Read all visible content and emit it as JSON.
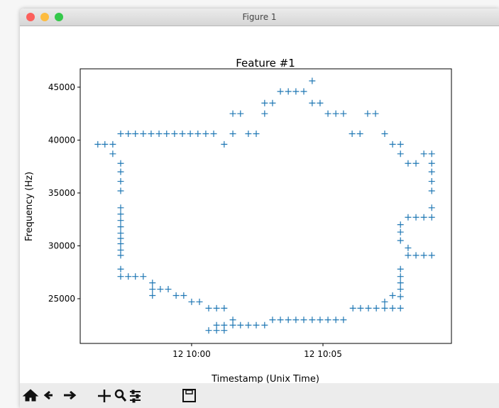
{
  "window": {
    "title": "Figure 1"
  },
  "chart_data": {
    "type": "scatter",
    "title": "Feature #1",
    "xlabel": "Timestamp (Unix Time)",
    "ylabel": "Frequency (Hz)",
    "marker": "+",
    "color": "#1f77b4",
    "xlim": [
      595.76,
      609.89
    ],
    "ylim": [
      20770,
      46740
    ],
    "xticks": [
      {
        "value": 600,
        "label": "12 10:00"
      },
      {
        "value": 605,
        "label": "12 10:05"
      }
    ],
    "yticks": [
      25000,
      30000,
      35000,
      40000,
      45000
    ],
    "x": [
      596.43,
      596.7,
      597.0,
      597.0,
      597.3,
      597.59,
      597.86,
      598.16,
      598.46,
      598.76,
      599.05,
      599.35,
      599.65,
      599.95,
      600.24,
      600.54,
      600.84,
      601.24,
      601.57,
      601.57,
      601.86,
      602.16,
      602.46,
      602.78,
      602.78,
      603.08,
      603.38,
      603.68,
      603.97,
      604.27,
      604.59,
      604.59,
      604.89,
      605.19,
      605.49,
      605.78,
      606.11,
      606.41,
      606.7,
      607.0,
      607.35,
      607.65,
      607.95,
      607.95,
      608.24,
      608.54,
      608.84,
      609.14,
      609.14,
      609.14,
      609.14,
      609.14,
      609.14,
      609.14,
      608.24,
      608.54,
      608.84,
      607.95,
      607.95,
      607.95,
      608.24,
      608.24,
      608.54,
      608.84,
      609.14,
      607.95,
      607.95,
      607.95,
      607.95,
      607.95,
      607.65,
      607.35,
      606.14,
      606.43,
      606.73,
      607.03,
      607.35,
      607.65,
      607.95,
      603.08,
      603.38,
      603.68,
      603.97,
      604.27,
      604.59,
      604.89,
      605.19,
      605.49,
      605.78,
      601.57,
      601.57,
      601.86,
      602.16,
      602.46,
      602.78,
      600.95,
      601.24,
      600.65,
      600.95,
      601.24,
      600.65,
      600.95,
      601.24,
      600.0,
      600.3,
      599.41,
      599.7,
      598.81,
      599.11,
      598.51,
      598.51,
      598.51,
      597.3,
      597.59,
      597.86,
      598.16,
      597.3,
      597.3,
      597.3,
      597.3,
      597.3,
      597.3,
      597.3,
      597.3,
      597.3,
      597.3,
      597.3,
      597.3,
      597.3,
      597.3
    ],
    "values": [
      39600,
      39600,
      39600,
      38700,
      40600,
      40600,
      40600,
      40600,
      40600,
      40600,
      40600,
      40600,
      40600,
      40600,
      40600,
      40600,
      40600,
      39600,
      40600,
      42500,
      42500,
      40600,
      40600,
      42500,
      43500,
      43500,
      44600,
      44600,
      44600,
      44600,
      45600,
      43500,
      43500,
      42500,
      42500,
      42500,
      40600,
      40600,
      42500,
      42500,
      40600,
      39600,
      39600,
      38700,
      37800,
      37800,
      38700,
      38700,
      37800,
      37000,
      36100,
      35200,
      33600,
      32700,
      32700,
      32700,
      32700,
      32000,
      31300,
      30500,
      29800,
      29100,
      29100,
      29100,
      29100,
      27800,
      27100,
      26500,
      25900,
      25200,
      25300,
      24700,
      24100,
      24100,
      24100,
      24100,
      24100,
      24100,
      24100,
      23000,
      23000,
      23000,
      23000,
      23000,
      23000,
      23000,
      23000,
      23000,
      23000,
      23000,
      22500,
      22500,
      22500,
      22500,
      22500,
      22500,
      22500,
      22000,
      22000,
      22000,
      24100,
      24100,
      24100,
      24700,
      24700,
      25300,
      25300,
      25900,
      25900,
      26500,
      25900,
      25300,
      27100,
      27100,
      27100,
      27100,
      37800,
      37000,
      36100,
      35200,
      33600,
      33000,
      32400,
      31800,
      31200,
      30700,
      30200,
      29600,
      29100,
      27800
    ]
  }
}
